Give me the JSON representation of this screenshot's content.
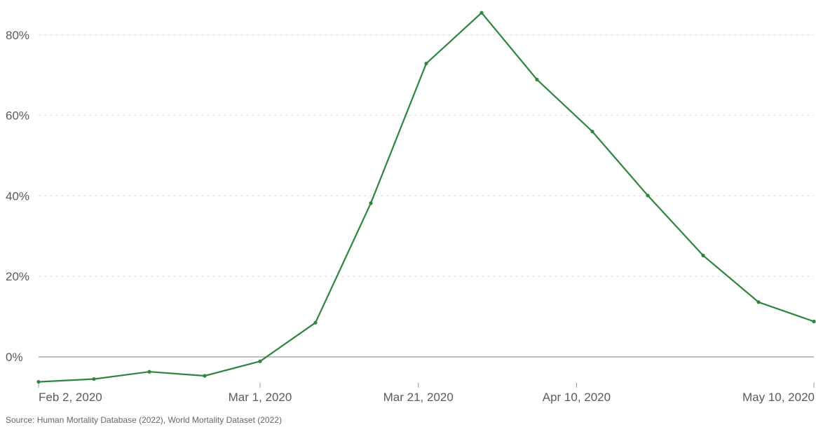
{
  "chart_data": {
    "type": "line",
    "x_type": "date",
    "series": [
      {
        "color": "#2e8540",
        "points": [
          {
            "x": "2020-02-02",
            "y": -6.2
          },
          {
            "x": "2020-02-09",
            "y": -5.5
          },
          {
            "x": "2020-02-16",
            "y": -3.7
          },
          {
            "x": "2020-02-23",
            "y": -4.7
          },
          {
            "x": "2020-03-01",
            "y": -1.1
          },
          {
            "x": "2020-03-08",
            "y": 8.5
          },
          {
            "x": "2020-03-15",
            "y": 38.2
          },
          {
            "x": "2020-03-22",
            "y": 72.9
          },
          {
            "x": "2020-03-29",
            "y": 85.5
          },
          {
            "x": "2020-04-05",
            "y": 68.9
          },
          {
            "x": "2020-04-12",
            "y": 56.0
          },
          {
            "x": "2020-04-19",
            "y": 40.1
          },
          {
            "x": "2020-04-26",
            "y": 25.2
          },
          {
            "x": "2020-05-03",
            "y": 13.6
          },
          {
            "x": "2020-05-10",
            "y": 8.8
          }
        ]
      }
    ],
    "y_ticks": [
      0,
      20,
      40,
      60,
      80
    ],
    "y_tick_labels": [
      "0%",
      "20%",
      "40%",
      "60%",
      "80%"
    ],
    "x_ticks": [
      "2020-02-02",
      "2020-03-01",
      "2020-03-21",
      "2020-04-10",
      "2020-05-10"
    ],
    "x_tick_labels": [
      "Feb 2, 2020",
      "Mar 1, 2020",
      "Mar 21, 2020",
      "Apr 10, 2020",
      "May 10, 2020"
    ],
    "xlim": [
      "2020-02-02",
      "2020-05-10"
    ],
    "ylim": [
      -10,
      90
    ],
    "grid": "horizontal dashed",
    "gridline_color": "#dddddd",
    "zero_line_color": "#999999"
  },
  "source": "Source: Human Mortality Database (2022), World Mortality Dataset (2022)"
}
